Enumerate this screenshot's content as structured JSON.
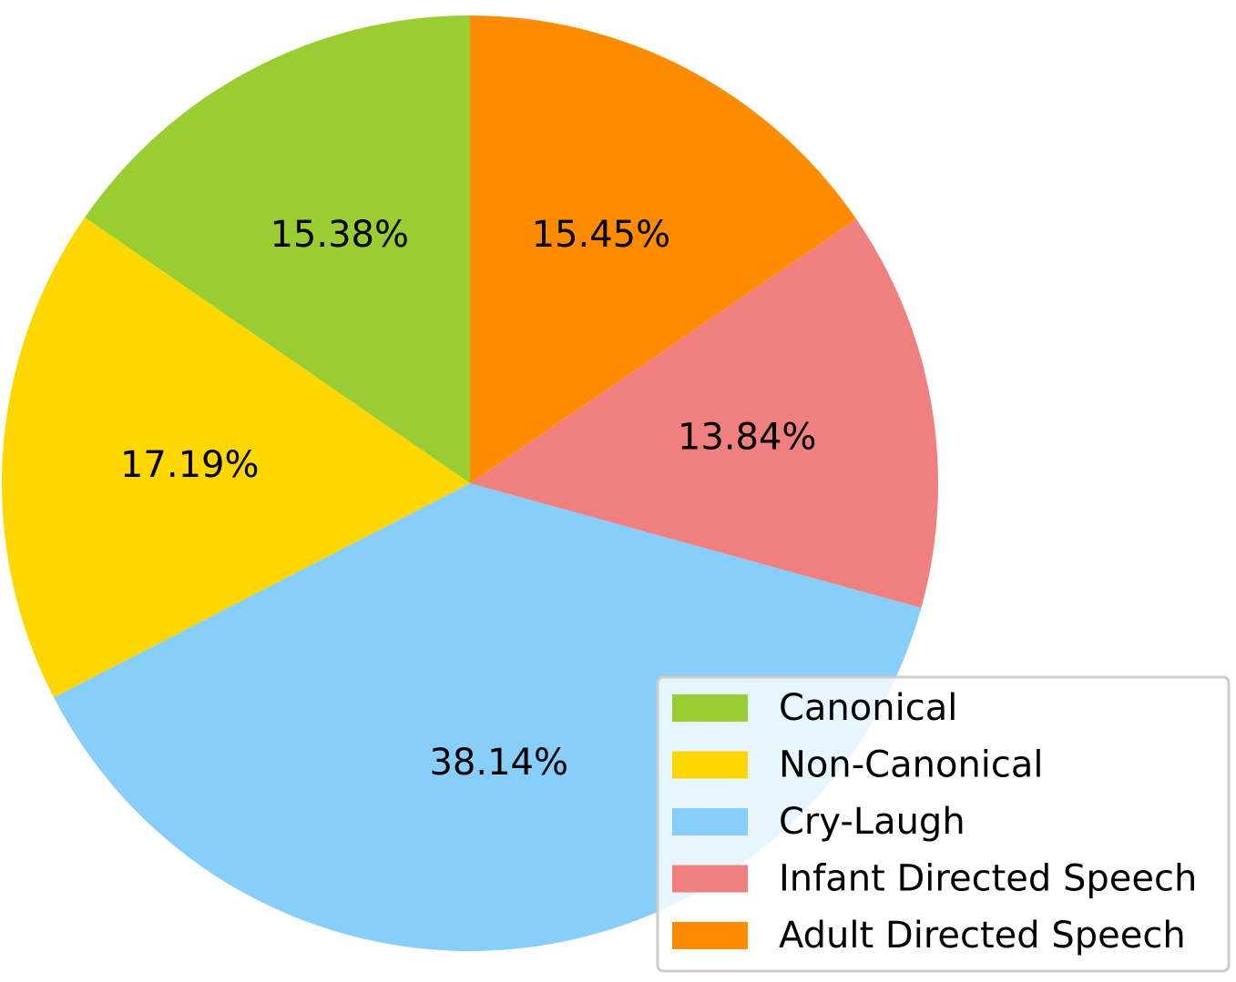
{
  "chart_data": {
    "type": "pie",
    "start_angle_deg": 90,
    "direction": "counterclockwise",
    "slices": [
      {
        "label": "Canonical",
        "value": 15.38,
        "display": "15.38%",
        "color": "#9ACD32"
      },
      {
        "label": "Non-Canonical",
        "value": 17.19,
        "display": "17.19%",
        "color": "#FFD700"
      },
      {
        "label": "Cry-Laugh",
        "value": 38.14,
        "display": "38.14%",
        "color": "#87CEFA"
      },
      {
        "label": "Infant Directed Speech",
        "value": 13.84,
        "display": "13.84%",
        "color": "#F08080"
      },
      {
        "label": "Adult Directed Speech",
        "value": 15.45,
        "display": "15.45%",
        "color": "#FF8C00"
      }
    ],
    "legend": {
      "placement": "lower-right"
    }
  }
}
